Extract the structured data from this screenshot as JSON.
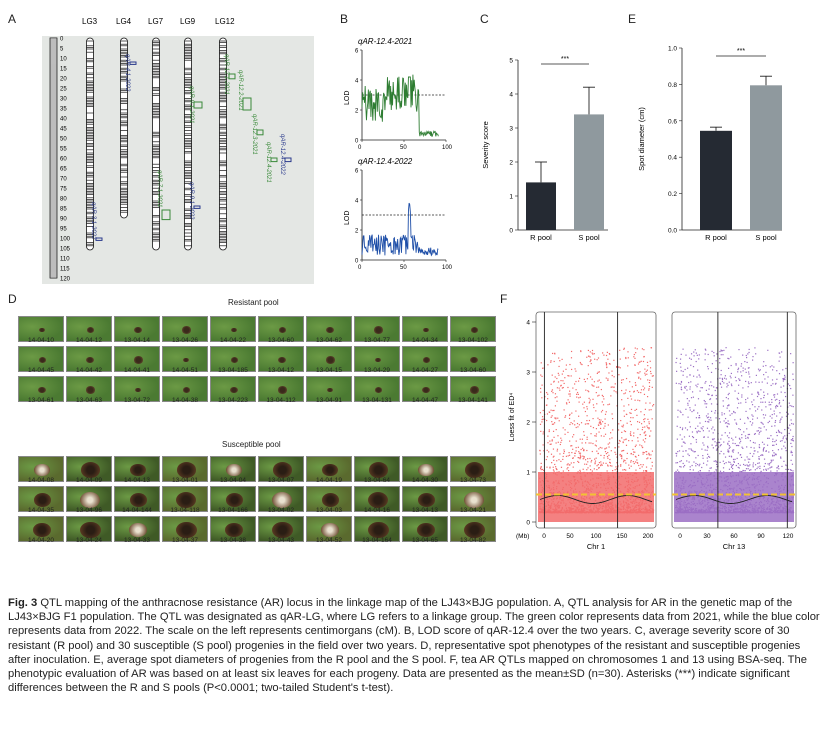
{
  "panelA": {
    "letter": "A",
    "lg_labels": [
      "LG3",
      "LG4",
      "LG7",
      "LG9",
      "LG12"
    ],
    "scale": [
      "0",
      "5",
      "10",
      "15",
      "20",
      "25",
      "30",
      "35",
      "40",
      "45",
      "50",
      "55",
      "60",
      "65",
      "70",
      "75",
      "80",
      "85",
      "90",
      "95",
      "100",
      "105",
      "110",
      "115",
      "120"
    ],
    "qtls": [
      {
        "label": "qAR-3.1-2022",
        "color": "#2a3a8c"
      },
      {
        "label": "qAR-4.1-2022",
        "color": "#2a3a8c"
      },
      {
        "label": "qAR-7.1-2021",
        "color": "#3a8a3a"
      },
      {
        "label": "qAR-9.1-2021",
        "color": "#3a8a3a"
      },
      {
        "label": "qAR-9.1-2022",
        "color": "#2a3a8c"
      },
      {
        "label": "qAR-12.1-2021",
        "color": "#3a8a3a"
      },
      {
        "label": "qAR-12.2-2021",
        "color": "#3a8a3a"
      },
      {
        "label": "qAR-12.3-2021",
        "color": "#3a8a3a"
      },
      {
        "label": "qAR-12.4-2021",
        "color": "#3a8a3a"
      },
      {
        "label": "qAR-12.4-2022",
        "color": "#2a3a8c"
      }
    ]
  },
  "panelB": {
    "letter": "B",
    "top_title": "qAR-12.4-2021",
    "bottom_title": "qAR-12.4-2022",
    "ylabel": "LOD",
    "yticks": [
      "0",
      "2",
      "4",
      "6"
    ],
    "xticks": [
      "0",
      "50",
      "100"
    ],
    "top_color": "#2e7d32",
    "bottom_color": "#1f4fa8"
  },
  "panelC": {
    "letter": "C",
    "chart_data": {
      "type": "bar",
      "categories": [
        "R pool",
        "S pool"
      ],
      "values": [
        1.4,
        3.4
      ],
      "errors": [
        0.6,
        0.8
      ],
      "ylabel": "Severity score",
      "ylim": [
        0,
        5
      ],
      "yticks": [
        "0",
        "1",
        "2",
        "3",
        "4",
        "5"
      ],
      "significance": "***",
      "colors": [
        "#252a33",
        "#8f999e"
      ]
    }
  },
  "panelE": {
    "letter": "E",
    "chart_data": {
      "type": "bar",
      "categories": [
        "R pool",
        "S pool"
      ],
      "values": [
        0.545,
        0.795
      ],
      "errors": [
        0.02,
        0.05
      ],
      "ylabel": "Spot diameter (cm)",
      "ylim": [
        0,
        1.0
      ],
      "yticks": [
        "0.0",
        "0.2",
        "0.4",
        "0.6",
        "0.8",
        "1.0"
      ],
      "significance": "***",
      "colors": [
        "#252a33",
        "#8f999e"
      ]
    }
  },
  "panelD": {
    "letter": "D",
    "resistant_title": "Resistant pool",
    "susceptible_title": "Susceptible pool",
    "resistant_labels": [
      [
        "14-04-10",
        "14-04-12",
        "13-04-14",
        "13-04-26",
        "14-04-22",
        "13-04-60",
        "13-04-62",
        "13-04-77",
        "14-04-34",
        "13-04-102"
      ],
      [
        "14-04-45",
        "14-04-42",
        "14-04-41",
        "14-04-51",
        "13-04-185",
        "13-04-12",
        "13-04-15",
        "13-04-29",
        "14-04-27",
        "13-04-60"
      ],
      [
        "13-04-61",
        "13-04-63",
        "13-04-72",
        "14-04-38",
        "13-04-223",
        "13-04-112",
        "13-04-91",
        "13-04-131",
        "14-04-47",
        "13-04-141"
      ]
    ],
    "susceptible_labels": [
      [
        "14-04-08",
        "14-04-09",
        "14-04-13",
        "13-04-01",
        "13-04-04",
        "13-04-07",
        "14-04-19",
        "13-04-64",
        "14-04-30",
        "13-04-73"
      ],
      [
        "14-04-35",
        "13-04-96",
        "14-04-144",
        "13-04-118",
        "13-04-166",
        "13-04-02",
        "13-04-03",
        "14-04-16",
        "13-04-13",
        "13-04-21"
      ],
      [
        "14-04-20",
        "13-04-24",
        "13-04-33",
        "13-04-37",
        "13-04-38",
        "13-04-43",
        "13-04-52",
        "13-04-164",
        "13-04-65",
        "13-04-82"
      ]
    ]
  },
  "panelF": {
    "letter": "F",
    "ylabel": "Loess fit of ED⁴",
    "yticks": [
      "0",
      "1",
      "2",
      "3",
      "4"
    ],
    "mb_label": "(Mb)",
    "chr1_xticks": [
      "0",
      "50",
      "100",
      "150",
      "200"
    ],
    "chr13_xticks": [
      "0",
      "30",
      "60",
      "90",
      "120"
    ],
    "chr1_label": "Chr 1",
    "chr13_label": "Chr 13",
    "chr1_color": "#f26b6b",
    "chr13_color": "#9b6fc4",
    "threshold_color": "#f2c233"
  },
  "caption": {
    "fig": "Fig. 3",
    "text": "QTL mapping of the anthracnose resistance (AR) locus in the linkage map of the LJ43×BJG population. A, QTL analysis for AR in the genetic map of the LJ43×BJG F1 population. The QTL was designated as qAR-LG, where LG refers to a linkage group. The green color represents data from 2021, while the blue color represents data from 2022. The scale on the left represents centimorgans (cM). B, LOD score of qAR-12.4 over the two years. C, average severity score of 30 resistant (R pool) and 30 susceptible (S pool) progenies in the field over two years. D, representative spot phenotypes of the resistant and susceptible progenies after inoculation. E, average spot diameters of progenies from the R pool and the S pool. F, tea AR QTLs mapped on chromosomes 1 and 13 using BSA-seq. The phenotypic evaluation of AR was based on at least six leaves for each progeny. Data are presented as the mean±SD (n=30). Asterisks (***) indicate significant differences between the R and S pools (P<0.0001; two-tailed Student's t-test)."
  }
}
